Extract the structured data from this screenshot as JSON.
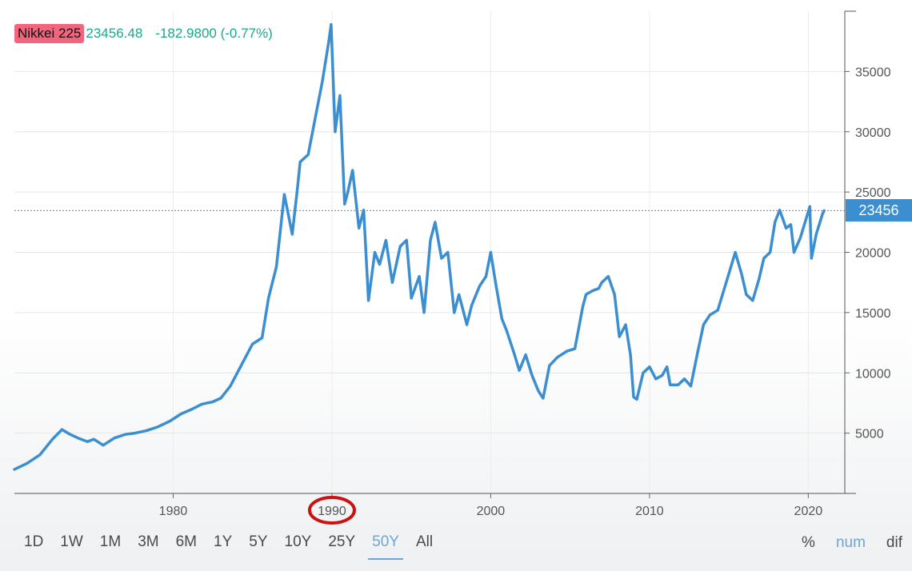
{
  "header": {
    "symbol": "Nikkei 225",
    "price": "23456.48",
    "change": "-182.9800 (-0.77%)"
  },
  "last_value_label": "23456",
  "range_buttons": [
    "1D",
    "1W",
    "1M",
    "3M",
    "6M",
    "1Y",
    "5Y",
    "10Y",
    "25Y",
    "50Y",
    "All"
  ],
  "active_range": "50Y",
  "mode_buttons": [
    "%",
    "num",
    "dif"
  ],
  "active_mode": "num",
  "annotation_circled_tick": "1990",
  "colors": {
    "line": "#3b8ed0",
    "symbol_highlight": "#f4647c",
    "price_text": "#1aa88a",
    "annotation_circle": "#cc1111",
    "active_control": "#6fa5d6"
  },
  "chart_data": {
    "type": "line",
    "title": "",
    "xlabel": "",
    "ylabel": "",
    "x_ticks": [
      "1980",
      "1990",
      "2000",
      "2010",
      "2020"
    ],
    "y_ticks": [
      "5000",
      "10000",
      "15000",
      "20000",
      "25000",
      "30000",
      "35000"
    ],
    "xlim": [
      1970,
      2022.3
    ],
    "ylim": [
      0,
      40000
    ],
    "reference_line": 23456,
    "grid": true,
    "series": [
      {
        "x": [
          1970.0,
          1970.8,
          1971.6,
          1972.4,
          1973.0,
          1973.5,
          1974.0,
          1974.6,
          1975.0,
          1975.6,
          1976.3,
          1977.0,
          1977.6,
          1978.3,
          1979.0,
          1979.8,
          1980.5,
          1981.2,
          1981.8,
          1982.5,
          1983.0,
          1983.6,
          1984.2,
          1985.0,
          1985.6,
          1986.0,
          1986.5,
          1987.0,
          1987.5,
          1987.8,
          1988.0,
          1988.5,
          1989.0,
          1989.4,
          1989.8,
          1989.95,
          1990.2,
          1990.5,
          1990.8,
          1991.0,
          1991.3,
          1991.7,
          1992.0,
          1992.3,
          1992.7,
          1993.0,
          1993.4,
          1993.8,
          1994.3,
          1994.7,
          1995.0,
          1995.5,
          1995.8,
          1996.2,
          1996.5,
          1996.9,
          1997.3,
          1997.7,
          1998.0,
          1998.5,
          1998.8,
          1999.3,
          1999.7,
          2000.0,
          2000.3,
          2000.7,
          2001.0,
          2001.5,
          2001.8,
          2002.2,
          2002.6,
          2003.0,
          2003.3,
          2003.7,
          2004.2,
          2004.8,
          2005.3,
          2005.8,
          2006.0,
          2006.4,
          2006.8,
          2007.0,
          2007.4,
          2007.8,
          2008.1,
          2008.5,
          2008.8,
          2009.0,
          2009.2,
          2009.6,
          2010.0,
          2010.4,
          2010.8,
          2011.1,
          2011.3,
          2011.8,
          2012.2,
          2012.6,
          2013.0,
          2013.4,
          2013.8,
          2014.3,
          2014.9,
          2015.4,
          2015.8,
          2016.1,
          2016.5,
          2016.9,
          2017.2,
          2017.6,
          2017.9,
          2018.2,
          2018.6,
          2018.9,
          2019.1,
          2019.5,
          2019.8,
          2020.1,
          2020.2,
          2020.5,
          2020.9,
          2021.0
        ],
        "values": [
          2000,
          2500,
          3200,
          4500,
          5300,
          4900,
          4600,
          4300,
          4500,
          4000,
          4600,
          4900,
          5000,
          5200,
          5500,
          6000,
          6600,
          7000,
          7400,
          7600,
          7900,
          8900,
          10400,
          12400,
          12900,
          16200,
          18800,
          24800,
          21500,
          25000,
          27500,
          28100,
          31500,
          34200,
          37500,
          38900,
          30000,
          33000,
          24000,
          25000,
          26800,
          22000,
          23500,
          16000,
          20000,
          19000,
          21000,
          17500,
          20500,
          21000,
          16200,
          18000,
          15000,
          21000,
          22500,
          19500,
          20000,
          15000,
          16500,
          14000,
          15600,
          17200,
          18000,
          20000,
          17500,
          14500,
          13500,
          11500,
          10200,
          11500,
          9800,
          8500,
          7900,
          10600,
          11300,
          11800,
          12000,
          15500,
          16500,
          16800,
          17000,
          17500,
          18000,
          16500,
          13000,
          14000,
          11500,
          8000,
          7800,
          10000,
          10500,
          9500,
          9800,
          10500,
          9000,
          9000,
          9500,
          8900,
          11500,
          14000,
          14800,
          15200,
          17800,
          20000,
          18200,
          16500,
          16000,
          17800,
          19500,
          20000,
          22500,
          23500,
          22000,
          22300,
          20000,
          21200,
          22500,
          23800,
          19500,
          21500,
          23200,
          23456
        ]
      }
    ]
  }
}
